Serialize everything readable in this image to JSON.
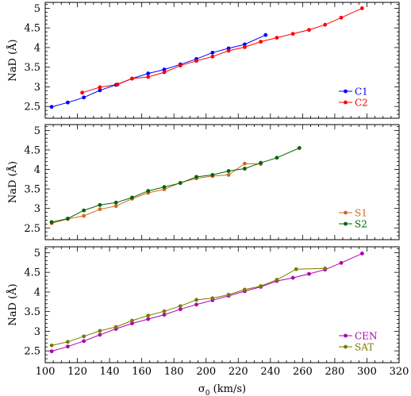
{
  "chart_data": {
    "type": "line",
    "x_axis": {
      "label": "σ",
      "label_subscript": "0",
      "label_units": "(km/s)",
      "range": [
        100,
        320
      ],
      "ticks": [
        100,
        120,
        140,
        160,
        180,
        200,
        220,
        240,
        260,
        280,
        300,
        320
      ]
    },
    "panels": [
      {
        "ylabel": "NaD (Å)",
        "ylim": [
          2.2,
          5.15
        ],
        "yticks": [
          "2.5",
          "3",
          "3.5",
          "4",
          "4.5",
          "5"
        ],
        "legend_position": "bottom-right",
        "series": [
          {
            "name": "C1",
            "color": "#0000ff",
            "x": [
              104,
              114,
              124,
              134,
              144,
              154,
              164,
              174,
              184,
              194,
              204,
              214,
              224,
              237
            ],
            "y": [
              2.49,
              2.6,
              2.73,
              2.91,
              3.05,
              3.21,
              3.34,
              3.44,
              3.57,
              3.71,
              3.87,
              3.98,
              4.08,
              4.32
            ]
          },
          {
            "name": "C2",
            "color": "#ff0000",
            "x": [
              123,
              134,
              145,
              154,
              164,
              174,
              184,
              194,
              204,
              214,
              224,
              234,
              244,
              254,
              264,
              274,
              284,
              297
            ],
            "y": [
              2.85,
              2.99,
              3.06,
              3.21,
              3.25,
              3.37,
              3.54,
              3.66,
              3.77,
              3.92,
              4.01,
              4.15,
              4.25,
              4.35,
              4.45,
              4.58,
              4.76,
              5.0
            ]
          }
        ]
      },
      {
        "ylabel": "NaD (Å)",
        "ylim": [
          2.2,
          5.15
        ],
        "yticks": [
          "2.5",
          "3",
          "3.5",
          "4",
          "4.5",
          "5"
        ],
        "legend_position": "bottom-right",
        "series": [
          {
            "name": "S1",
            "color": "#d2691e",
            "x": [
              104,
              114,
              124,
              134,
              144,
              154,
              164,
              174,
              184,
              194,
              204,
              214,
              224,
              234
            ],
            "y": [
              2.62,
              2.73,
              2.81,
              2.98,
              3.06,
              3.25,
              3.4,
              3.49,
              3.66,
              3.77,
              3.83,
              3.86,
              4.15,
              4.14
            ]
          },
          {
            "name": "S2",
            "color": "#006400",
            "x": [
              104,
              114,
              124,
              134,
              144,
              154,
              164,
              174,
              184,
              194,
              204,
              214,
              224,
              234,
              244,
              258
            ],
            "y": [
              2.65,
              2.74,
              2.95,
              3.09,
              3.15,
              3.28,
              3.45,
              3.55,
              3.65,
              3.81,
              3.86,
              3.96,
              4.02,
              4.17,
              4.3,
              4.55
            ]
          }
        ]
      },
      {
        "ylabel": "NaD (Å)",
        "ylim": [
          2.2,
          5.15
        ],
        "yticks": [
          "2.5",
          "3",
          "3.5",
          "4",
          "4.5",
          "5"
        ],
        "legend_position": "bottom-right",
        "series": [
          {
            "name": "CEN",
            "color": "#b000b0",
            "x": [
              104,
              114,
              124,
              134,
              144,
              154,
              164,
              174,
              184,
              194,
              204,
              214,
              224,
              234,
              244,
              254,
              264,
              274,
              284,
              297
            ],
            "y": [
              2.49,
              2.61,
              2.75,
              2.91,
              3.06,
              3.2,
              3.31,
              3.42,
              3.56,
              3.68,
              3.79,
              3.9,
              4.02,
              4.13,
              4.28,
              4.36,
              4.46,
              4.57,
              4.74,
              4.98
            ]
          },
          {
            "name": "SAT",
            "color": "#7a7a00",
            "x": [
              104,
              114,
              124,
              134,
              144,
              154,
              164,
              174,
              184,
              194,
              204,
              214,
              224,
              234,
              244,
              256,
              274
            ],
            "y": [
              2.64,
              2.73,
              2.87,
              3.01,
              3.11,
              3.27,
              3.4,
              3.51,
              3.64,
              3.8,
              3.84,
              3.93,
              4.06,
              4.15,
              4.31,
              4.58,
              4.6
            ]
          }
        ]
      }
    ]
  }
}
